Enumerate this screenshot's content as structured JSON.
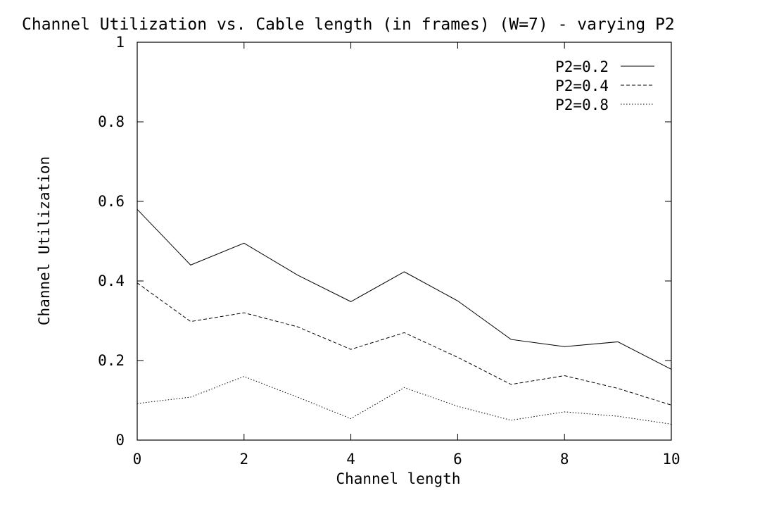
{
  "chart_data": {
    "type": "line",
    "title": "Channel Utilization vs. Cable length (in frames) (W=7) - varying P2",
    "xlabel": "Channel length",
    "ylabel": "Channel Utilization",
    "xlim": [
      0,
      10
    ],
    "ylim": [
      0,
      1
    ],
    "x_ticks": [
      "0",
      "2",
      "4",
      "6",
      "8",
      "10"
    ],
    "y_ticks": [
      "0",
      "0.2",
      "0.4",
      "0.6",
      "0.8",
      "1"
    ],
    "grid": false,
    "legend_position": "top-right",
    "x": [
      0,
      1,
      2,
      3,
      4,
      5,
      6,
      7,
      8,
      9,
      10
    ],
    "series": [
      {
        "name": "P2=0.2",
        "line_style": "solid",
        "values": [
          0.58,
          0.44,
          0.495,
          0.415,
          0.348,
          0.423,
          0.35,
          0.253,
          0.235,
          0.247,
          0.178
        ]
      },
      {
        "name": "P2=0.4",
        "line_style": "dashed",
        "values": [
          0.395,
          0.298,
          0.32,
          0.285,
          0.228,
          0.27,
          0.208,
          0.14,
          0.162,
          0.13,
          0.088
        ]
      },
      {
        "name": "P2=0.8",
        "line_style": "dotted",
        "values": [
          0.092,
          0.108,
          0.16,
          0.108,
          0.054,
          0.132,
          0.085,
          0.05,
          0.071,
          0.06,
          0.04
        ]
      }
    ]
  }
}
